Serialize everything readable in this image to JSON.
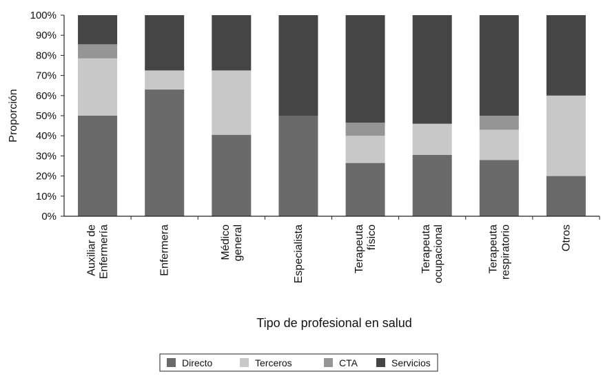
{
  "chart_data": {
    "type": "bar",
    "stacked": true,
    "percent": true,
    "categories": [
      [
        "Auxiliar de",
        "Enfermería"
      ],
      [
        "Enfermera"
      ],
      [
        "Médico",
        "general"
      ],
      [
        "Especialista"
      ],
      [
        "Terapeuta",
        "físico"
      ],
      [
        "Terapeuta",
        "ocupacional"
      ],
      [
        "Terapeuta",
        "respiratorio"
      ],
      [
        "Otros"
      ]
    ],
    "series": [
      {
        "name": "Directo",
        "color": "#6a6a6a",
        "values": [
          50,
          63,
          40.5,
          50,
          26.5,
          30.5,
          28,
          20
        ]
      },
      {
        "name": "Terceros",
        "color": "#c8c8c8",
        "values": [
          28.5,
          9.5,
          32,
          0,
          13.5,
          15.5,
          15,
          40
        ]
      },
      {
        "name": "CTA",
        "color": "#959595",
        "values": [
          7,
          0,
          0,
          0,
          6.5,
          0,
          7,
          0
        ]
      },
      {
        "name": "Servicios",
        "color": "#454545",
        "values": [
          14.5,
          27.5,
          27.5,
          50,
          53.5,
          54,
          50,
          40
        ]
      }
    ],
    "yticks": [
      "0%",
      "10%",
      "20%",
      "30%",
      "40%",
      "50%",
      "60%",
      "70%",
      "80%",
      "90%",
      "100%"
    ],
    "ylim": [
      0,
      100
    ],
    "xlabel": "Tipo de profesional en salud",
    "ylabel": "Proporción",
    "legend_position": "bottom-center",
    "grid": false
  }
}
